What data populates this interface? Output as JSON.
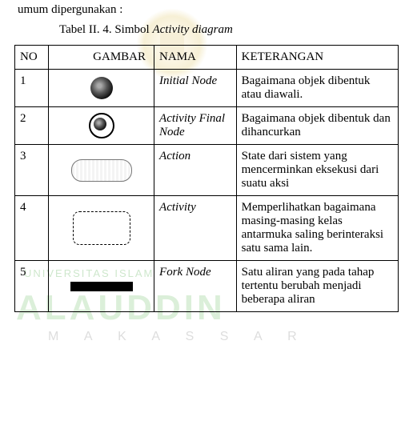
{
  "intro_text": "umum dipergunakan :",
  "caption": "Tabel II. 4. Simbol Activity diagram",
  "caption_italic_part": "Activity diagram",
  "caption_prefix": "Tabel II. 4. Simbol ",
  "watermarks": {
    "univ": "UNIVERSITAS ISLAM",
    "name": "ALAUDDIN",
    "city": "M A K A S S A R"
  },
  "table": {
    "headers": {
      "no": "NO",
      "gambar": "GAMBAR",
      "nama": "NAMA",
      "ket": "KETERANGAN"
    },
    "rows": [
      {
        "no": "1",
        "symbol": "initial",
        "nama": "Initial Node",
        "ket": "Bagaimana objek dibentuk atau diawali."
      },
      {
        "no": "2",
        "symbol": "final",
        "nama": "Activity Final Node",
        "ket": "Bagaimana objek dibentuk dan dihancurkan"
      },
      {
        "no": "3",
        "symbol": "action",
        "nama": "Action",
        "ket": "State dari sistem yang mencerminkan eksekusi dari suatu aksi"
      },
      {
        "no": "4",
        "symbol": "activity",
        "nama": "Activity",
        "ket": "Memperlihatkan bagaimana masing-masing kelas antarmuka saling berinteraksi satu sama lain."
      },
      {
        "no": "5",
        "symbol": "fork",
        "nama": "Fork Node",
        "ket": "Satu aliran yang pada tahap tertentu berubah menjadi beberapa aliran"
      }
    ]
  }
}
